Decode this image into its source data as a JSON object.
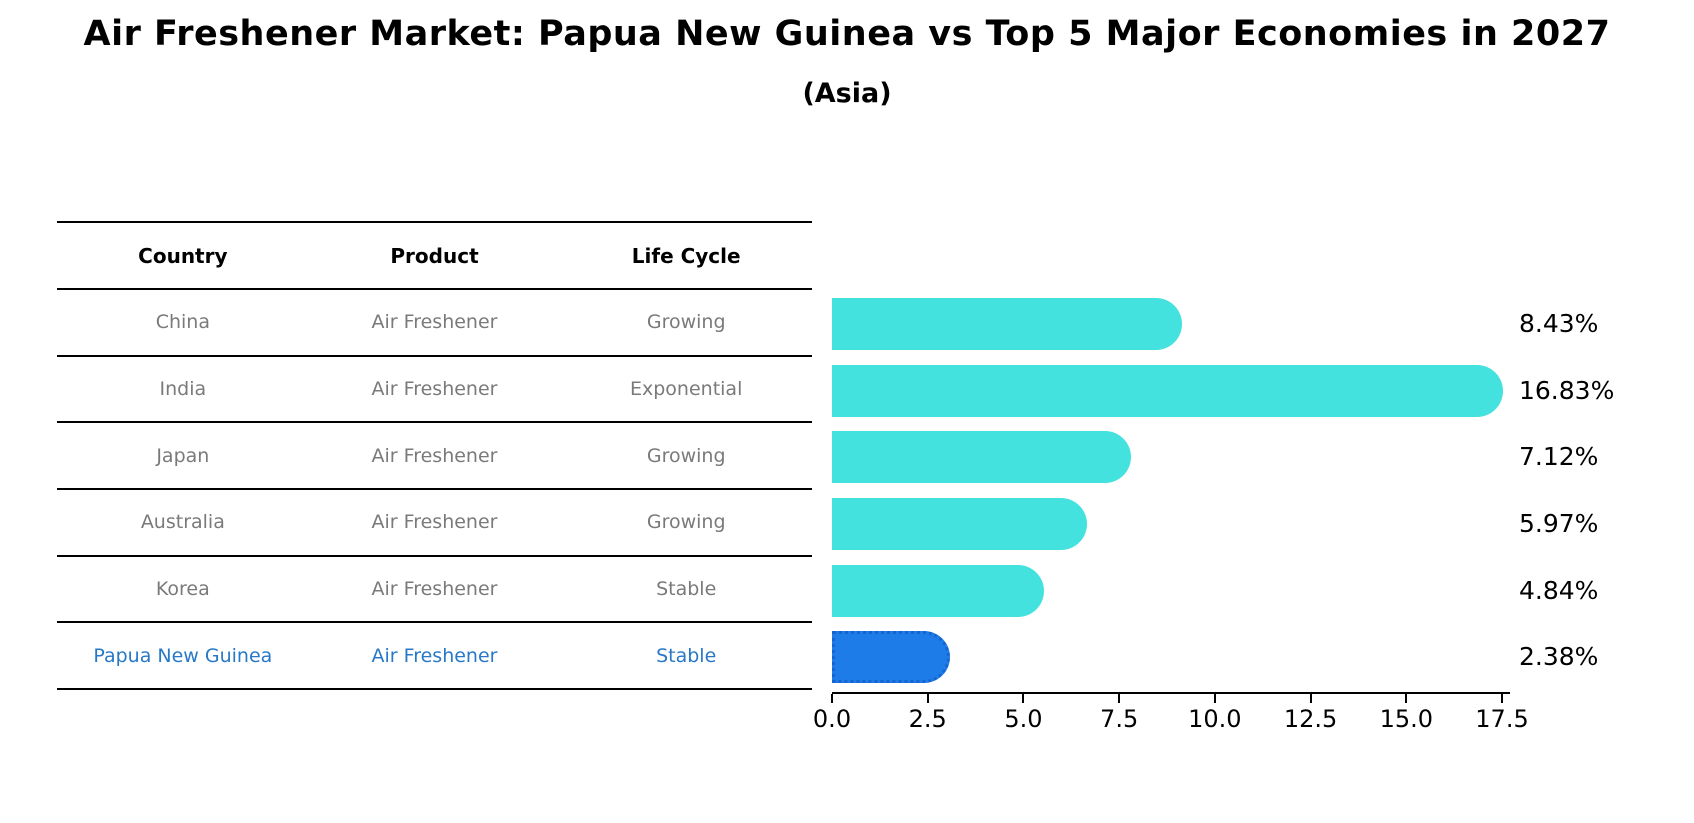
{
  "title": "Air Freshener Market: Papua New Guinea vs Top 5 Major Economies in 2027",
  "subtitle": "(Asia)",
  "table": {
    "headers": [
      "Country",
      "Product",
      "Life Cycle"
    ],
    "rows": [
      {
        "country": "China",
        "product": "Air Freshener",
        "life_cycle": "Growing",
        "highlight": false
      },
      {
        "country": "India",
        "product": "Air Freshener",
        "life_cycle": "Exponential",
        "highlight": false
      },
      {
        "country": "Japan",
        "product": "Air Freshener",
        "life_cycle": "Growing",
        "highlight": false
      },
      {
        "country": "Australia",
        "product": "Air Freshener",
        "life_cycle": "Growing",
        "highlight": false
      },
      {
        "country": "Korea",
        "product": "Air Freshener",
        "life_cycle": "Stable",
        "highlight": false
      },
      {
        "country": "Papua New Guinea",
        "product": "Air Freshener",
        "life_cycle": "Stable",
        "highlight": true
      }
    ]
  },
  "chart_data": {
    "type": "bar",
    "orientation": "horizontal",
    "title": "Air Freshener Market: Papua New Guinea vs Top 5 Major Economies in 2027 (Asia)",
    "categories": [
      "China",
      "India",
      "Japan",
      "Australia",
      "Korea",
      "Papua New Guinea"
    ],
    "values": [
      8.43,
      16.83,
      7.12,
      5.97,
      4.84,
      2.38
    ],
    "value_labels": [
      "8.43%",
      "16.83%",
      "7.12%",
      "5.97%",
      "4.84%",
      "2.38%"
    ],
    "xlim": [
      0,
      17.5
    ],
    "x_ticks": [
      "0.0",
      "2.5",
      "5.0",
      "7.5",
      "10.0",
      "12.5",
      "15.0",
      "17.5"
    ],
    "grid": false,
    "legend": "none",
    "bar_visual_pad_units": 0.7,
    "highlight_index": 5
  },
  "colors": {
    "bar_default": "#43e2df",
    "bar_highlight": "#1e7ce8",
    "bar_highlight_border": "#1565d0",
    "table_text": "#7a7a7a",
    "table_header_text": "#000000",
    "highlight_text": "#2878c8",
    "axis": "#000000",
    "background": "#ffffff"
  }
}
